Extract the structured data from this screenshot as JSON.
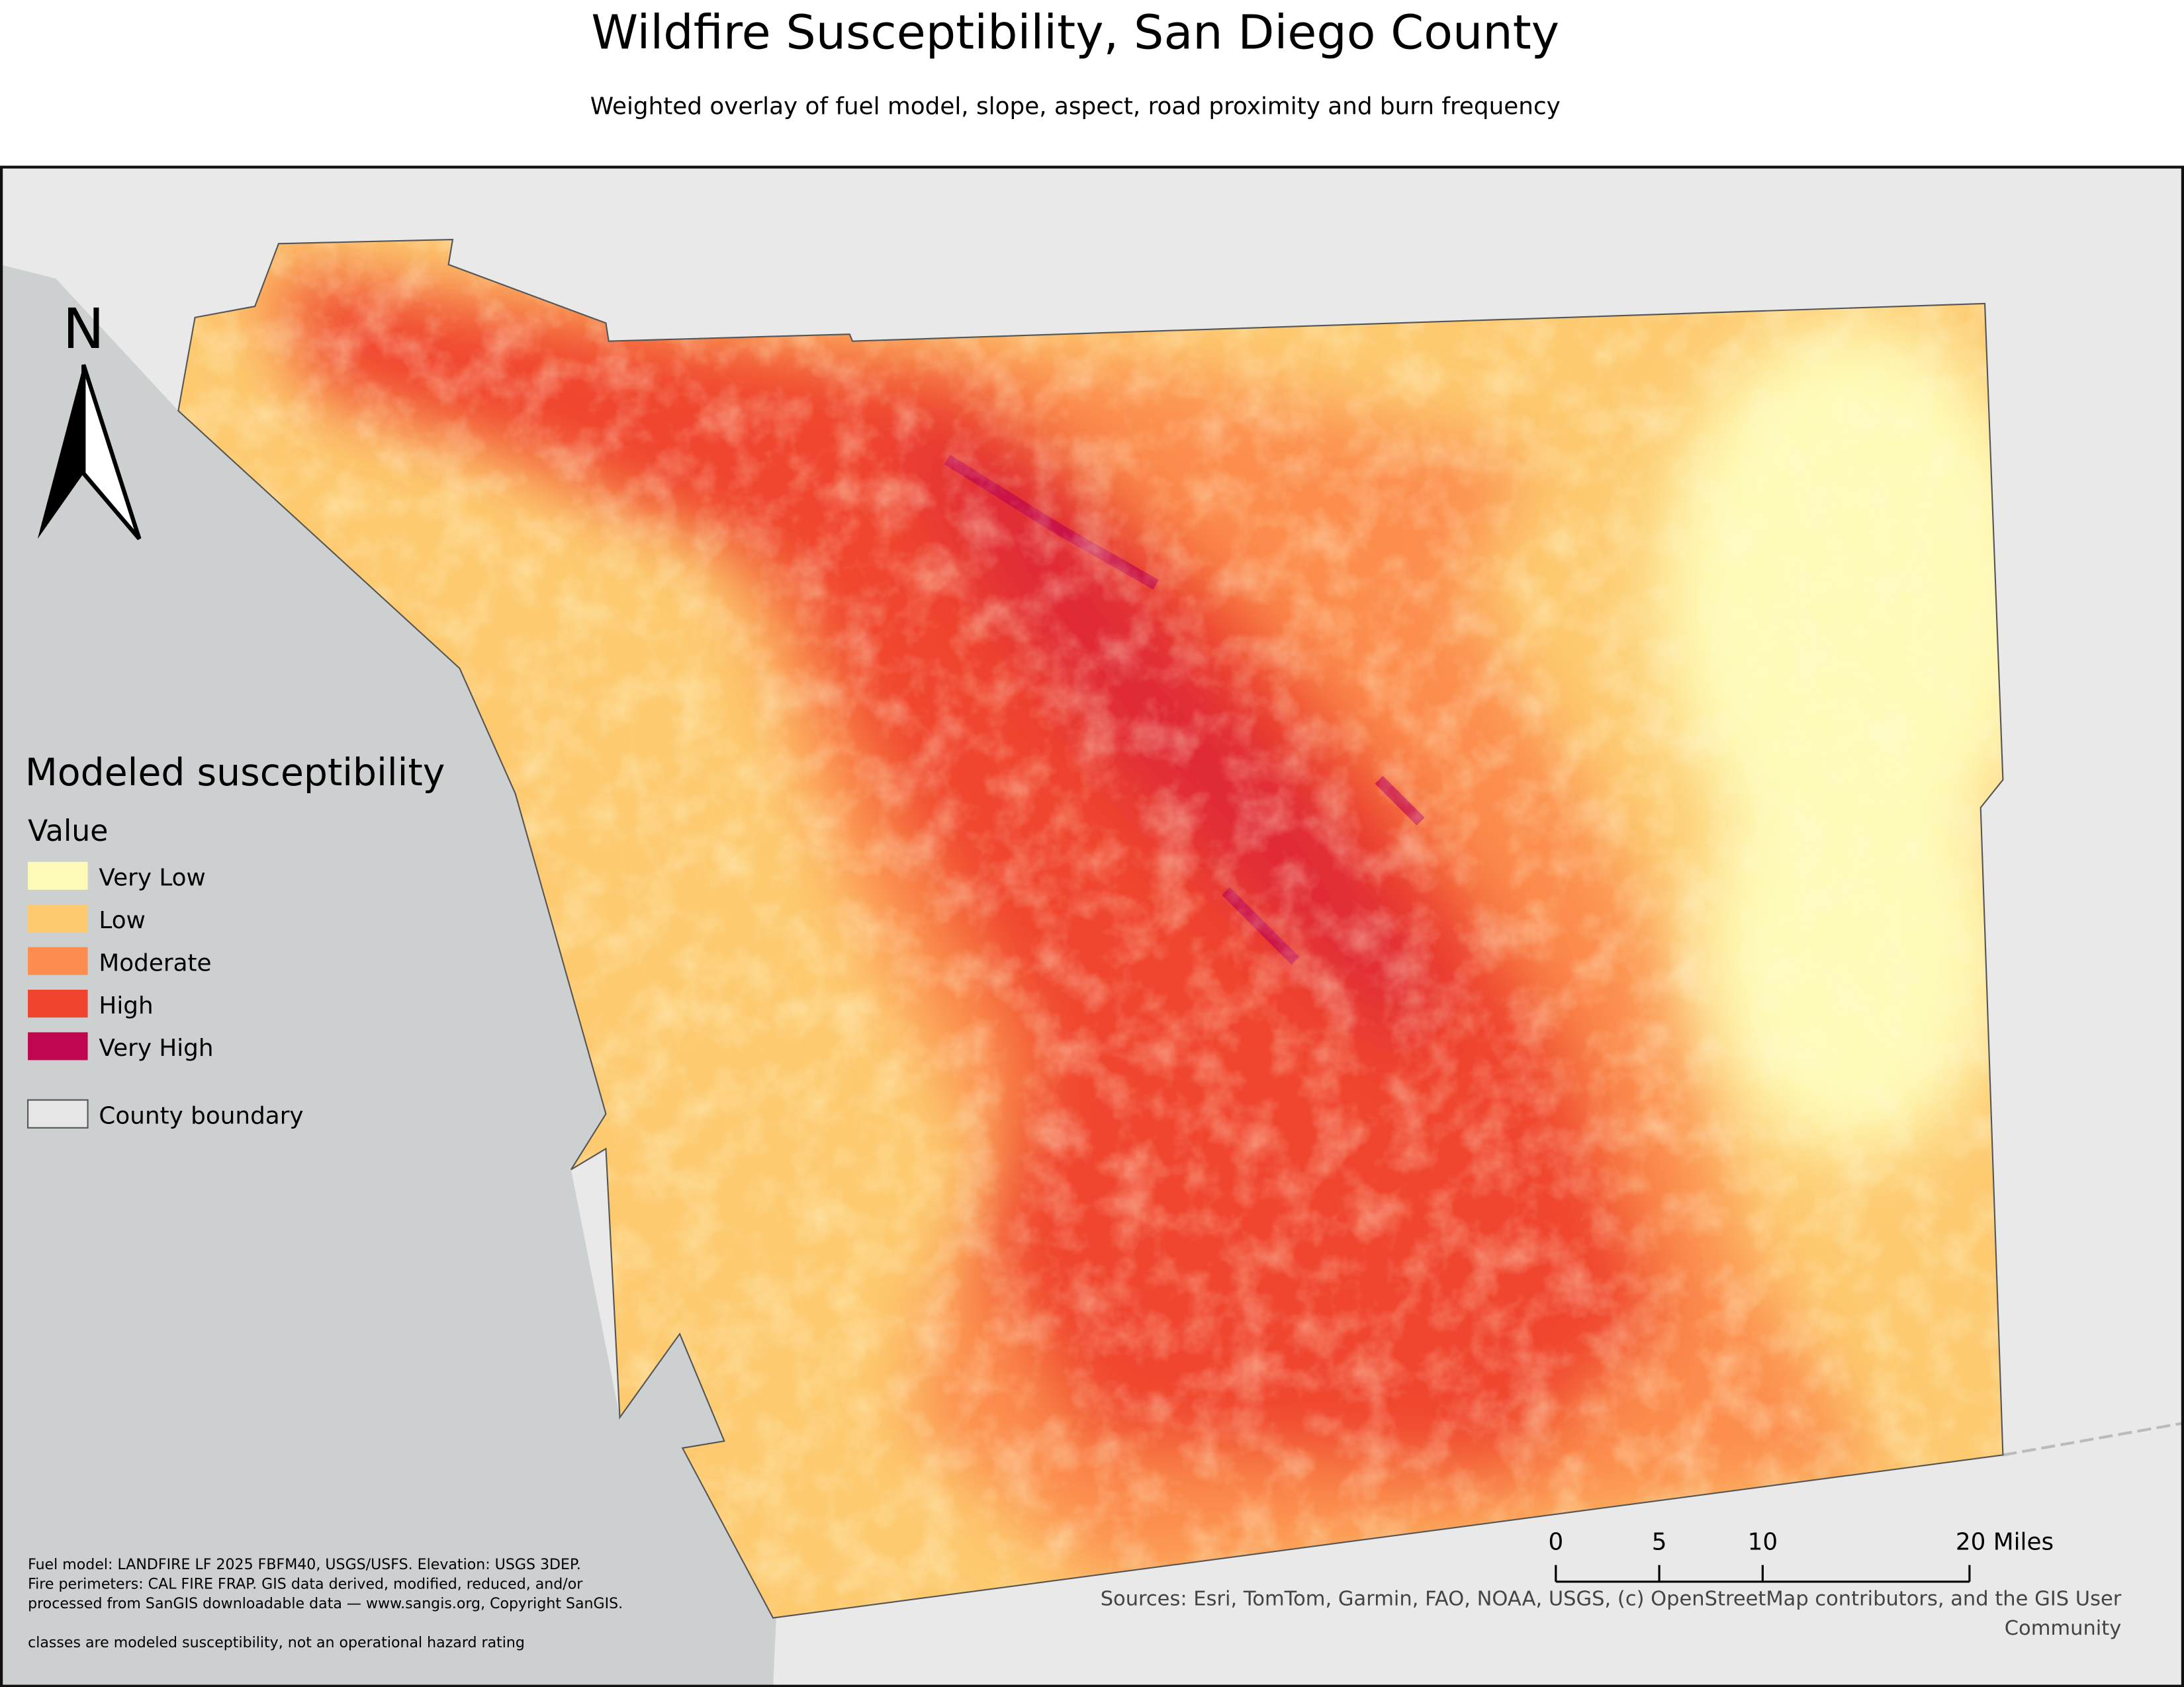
{
  "header": {
    "title": "Wildfire Susceptibility, San Diego County",
    "subtitle": "Weighted overlay of fuel model, slope, aspect, road proximity and burn frequency"
  },
  "north_arrow": {
    "label": "N"
  },
  "legend": {
    "title": "Modeled susceptibility",
    "subtitle": "Value",
    "items": [
      {
        "label": "Very Low",
        "color": "#fefbb8"
      },
      {
        "label": "Low",
        "color": "#fdca70"
      },
      {
        "label": "Moderate",
        "color": "#fc8d4e"
      },
      {
        "label": "High",
        "color": "#f0442f"
      },
      {
        "label": "Very High",
        "color": "#c0064f"
      }
    ],
    "boundary": {
      "label": "County boundary",
      "color": "#e6e6e6"
    }
  },
  "scale_bar": {
    "ticks": [
      0,
      5,
      10,
      {
        "value": 20,
        "label": "20 Miles"
      }
    ]
  },
  "credits": {
    "lines": [
      "Fuel model: LANDFIRE LF 2025 FBFM40, USGS/USFS. Elevation: USGS 3DEP.",
      "Fire perimeters: CAL FIRE FRAP. GIS data derived, modified, reduced, and/or",
      "processed from SanGIS downloadable data — www.sangis.org, Copyright SanGIS."
    ],
    "note": "classes are modeled susceptibility, not an operational hazard rating"
  },
  "sources": {
    "lines": [
      "Sources:  Esri, TomTom, Garmin, FAO, NOAA, USGS, (c) OpenStreetMap contributors, and the GIS User",
      "Community"
    ]
  }
}
